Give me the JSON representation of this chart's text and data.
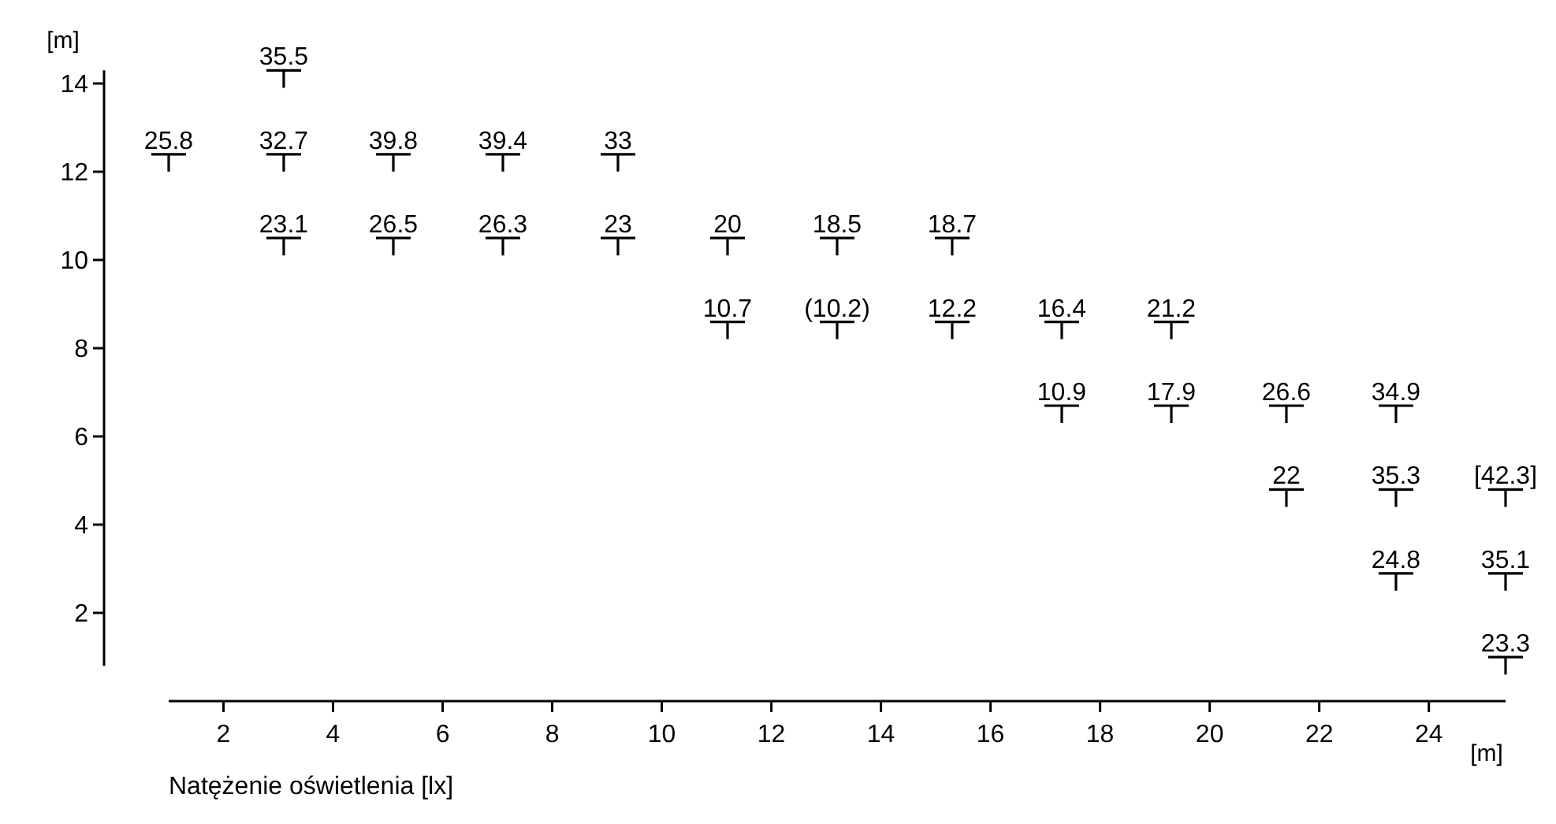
{
  "chart_data": {
    "type": "scatter",
    "xlabel": "[m]",
    "ylabel": "[m]",
    "annotations": [
      "Natężenie oświetlenia [lx]",
      {
        "text": "25.8",
        "x": 1.0,
        "y": 12.2
      },
      {
        "text": "35.5",
        "x": 3.1,
        "y": 14.1
      },
      {
        "text": "32.7",
        "x": 3.1,
        "y": 12.2
      },
      {
        "text": "23.1",
        "x": 3.1,
        "y": 10.3
      },
      {
        "text": "39.8",
        "x": 5.1,
        "y": 12.2
      },
      {
        "text": "26.5",
        "x": 5.1,
        "y": 10.3
      },
      {
        "text": "39.4",
        "x": 7.1,
        "y": 12.2
      },
      {
        "text": "26.3",
        "x": 7.1,
        "y": 10.3
      },
      {
        "text": "33",
        "x": 9.2,
        "y": 12.2
      },
      {
        "text": "23",
        "x": 9.2,
        "y": 10.3
      },
      {
        "text": "20",
        "x": 11.2,
        "y": 10.3
      },
      {
        "text": "10.7",
        "x": 11.2,
        "y": 8.4
      },
      {
        "text": "18.5",
        "x": 13.2,
        "y": 10.3
      },
      {
        "text": "(10.2)",
        "x": 13.2,
        "y": 8.4
      },
      {
        "text": "18.7",
        "x": 15.3,
        "y": 10.3
      },
      {
        "text": "12.2",
        "x": 15.3,
        "y": 8.4
      },
      {
        "text": "16.4",
        "x": 17.3,
        "y": 8.4
      },
      {
        "text": "10.9",
        "x": 17.3,
        "y": 6.5
      },
      {
        "text": "21.2",
        "x": 19.3,
        "y": 8.4
      },
      {
        "text": "17.9",
        "x": 19.3,
        "y": 6.5
      },
      {
        "text": "26.6",
        "x": 21.4,
        "y": 6.5
      },
      {
        "text": "22",
        "x": 21.4,
        "y": 4.6
      },
      {
        "text": "34.9",
        "x": 23.4,
        "y": 6.5
      },
      {
        "text": "35.3",
        "x": 23.4,
        "y": 4.6
      },
      {
        "text": "24.8",
        "x": 23.4,
        "y": 2.7
      },
      {
        "text": "[42.3]",
        "x": 25.4,
        "y": 4.6
      },
      {
        "text": "35.1",
        "x": 25.4,
        "y": 2.7
      },
      {
        "text": "23.3",
        "x": 25.4,
        "y": 0.8
      }
    ],
    "xlim": [
      1.0,
      25.4
    ],
    "xticks": [
      2,
      4,
      6,
      8,
      10,
      12,
      14,
      16,
      18,
      20,
      22,
      24
    ],
    "ylim": [
      0.8,
      14.3
    ],
    "yticks": [
      2,
      4,
      6,
      8,
      10,
      12,
      14
    ],
    "marker": "cross",
    "series": [
      {
        "color": "#000000",
        "x": [
          1.0,
          3.1,
          3.1,
          3.1,
          5.1,
          5.1,
          7.1,
          7.1,
          9.2,
          9.2,
          11.2,
          11.2,
          13.2,
          13.2,
          15.3,
          15.3,
          17.3,
          17.3,
          19.3,
          19.3,
          21.4,
          21.4,
          23.4,
          23.4,
          23.4,
          25.4,
          25.4,
          25.4
        ],
        "values": [
          12.2,
          14.1,
          12.2,
          10.3,
          12.2,
          10.3,
          12.2,
          10.3,
          12.2,
          10.3,
          10.3,
          8.4,
          10.3,
          8.4,
          10.3,
          8.4,
          8.4,
          6.5,
          8.4,
          6.5,
          6.5,
          4.6,
          6.5,
          4.6,
          2.7,
          4.6,
          2.7,
          0.8
        ]
      }
    ]
  }
}
